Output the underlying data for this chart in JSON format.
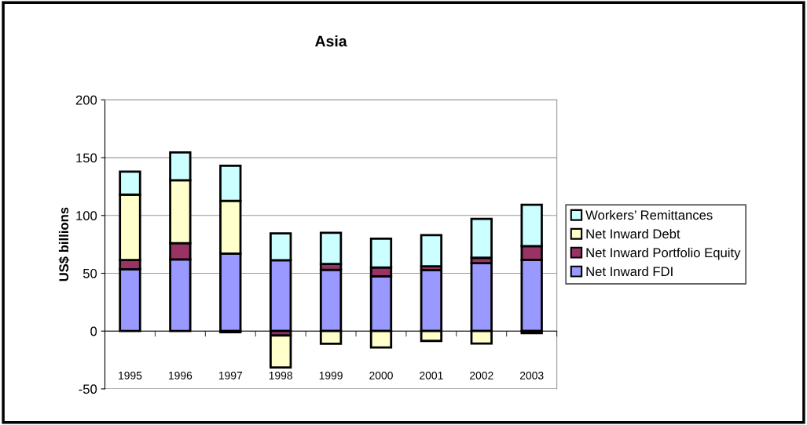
{
  "chart_data": {
    "type": "bar",
    "title": "Asia",
    "ylabel": "US$ billions",
    "stacked": true,
    "categories": [
      "1995",
      "1996",
      "1997",
      "1998",
      "1999",
      "2000",
      "2001",
      "2002",
      "2003"
    ],
    "series": [
      {
        "name": "Net Inward FDI",
        "color": "#9999ff",
        "values": [
          53.5,
          62,
          67,
          61.3,
          53,
          47.4,
          52.8,
          58.7,
          61.6
        ]
      },
      {
        "name": "Net Inward Portfolio Equity",
        "color": "#993366",
        "values": [
          8,
          14,
          -1,
          -3.8,
          5,
          7.6,
          3.2,
          4.7,
          11.9
        ]
      },
      {
        "name": "Net Inward Debt",
        "color": "#ffffcc",
        "values": [
          56.5,
          54.5,
          45.6,
          -27.7,
          -11,
          -14.2,
          -8.5,
          -10.8,
          -1.8
        ]
      },
      {
        "name": "Workers’ Remittances",
        "color": "#ccffff",
        "values": [
          20,
          24,
          30.4,
          23.2,
          27,
          25,
          27,
          33.7,
          35.7
        ]
      }
    ],
    "ylim": [
      -50,
      200
    ],
    "yticks": [
      -50,
      0,
      50,
      100,
      150,
      200
    ],
    "grid": "y",
    "legend": "right"
  }
}
